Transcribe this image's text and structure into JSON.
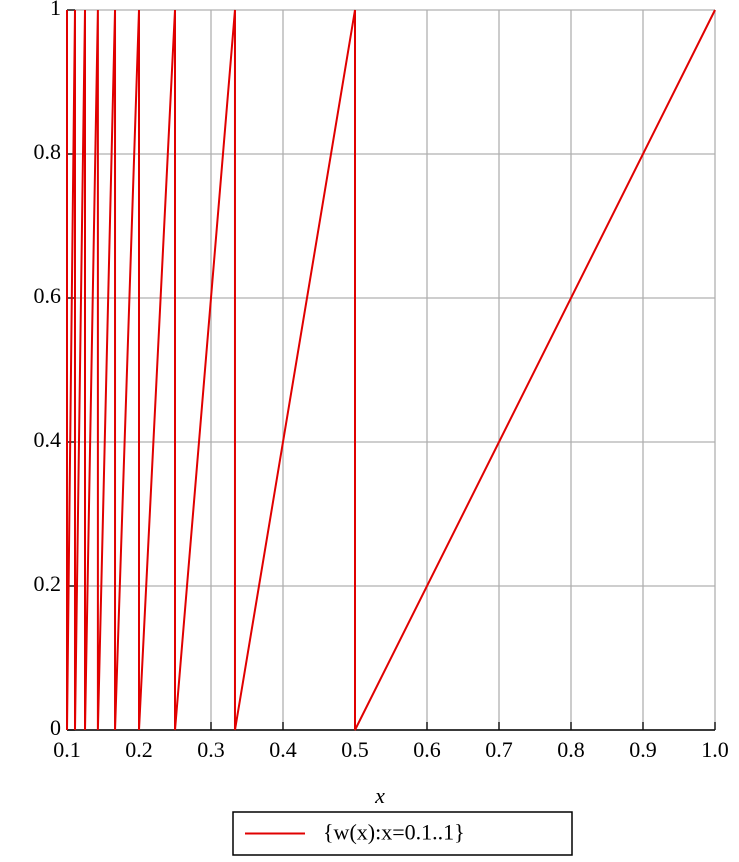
{
  "chart_data": {
    "type": "line",
    "x_label": "x",
    "xlim": [
      0.1,
      1
    ],
    "ylim": [
      0,
      1
    ],
    "xticks": [
      0.1,
      0.2,
      0.3,
      0.4,
      0.5,
      0.6,
      0.7,
      0.8,
      0.9,
      {
        "value": 1,
        "label": "1.0"
      }
    ],
    "yticks": [
      0,
      0.2,
      0.4,
      0.6,
      0.8,
      1
    ],
    "grid": true,
    "legend": "bottom",
    "series": [
      {
        "name": "{w(x):x=0.1..1}",
        "color": "#e00000",
        "x": [
          0.1,
          0.1,
          0.1111,
          0.1111,
          0.125,
          0.125,
          0.1429,
          0.1429,
          0.1667,
          0.1667,
          0.2,
          0.2,
          0.25,
          0.25,
          0.3333,
          0.3333,
          0.5,
          0.5,
          1
        ],
        "values": [
          1,
          0,
          1,
          0,
          1,
          0,
          1,
          0,
          1,
          0,
          1,
          0,
          1,
          0,
          1,
          0,
          1,
          0,
          1
        ]
      }
    ]
  }
}
